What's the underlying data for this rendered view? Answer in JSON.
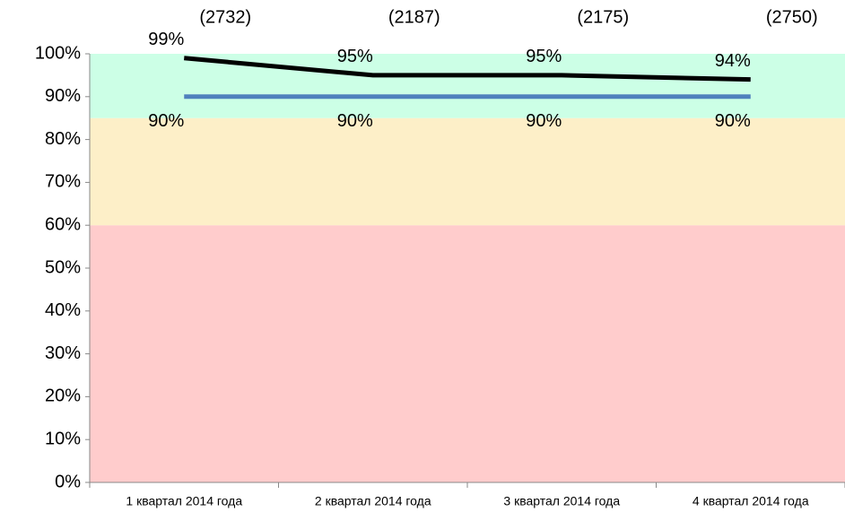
{
  "chart_data": {
    "type": "line",
    "categories": [
      "1 квартал 2014 года",
      "2 квартал 2014 года",
      "3 квартал 2014 года",
      "4 квартал 2014 года"
    ],
    "series": [
      {
        "name": null,
        "color": "#000000",
        "values": [
          99,
          95,
          95,
          94
        ],
        "value_labels": [
          "99%",
          "95%",
          "95%",
          "94%"
        ],
        "annotations": [
          "(2732)",
          "(2187)",
          "(2175)",
          "(2750)"
        ]
      },
      {
        "name": null,
        "color": "#4f81bd",
        "values": [
          90,
          90,
          90,
          90
        ],
        "value_labels": [
          "90%",
          "90%",
          "90%",
          "90%"
        ]
      }
    ],
    "bands": [
      {
        "from": 0,
        "to": 60,
        "color": "#ffcccc"
      },
      {
        "from": 60,
        "to": 85,
        "color": "#fdefc8"
      },
      {
        "from": 85,
        "to": 100,
        "color": "#ccffe6"
      }
    ],
    "ylim": [
      0,
      100
    ],
    "yticks": [
      {
        "value": 0,
        "label": "0%"
      },
      {
        "value": 10,
        "label": "10%"
      },
      {
        "value": 20,
        "label": "20%"
      },
      {
        "value": 30,
        "label": "30%"
      },
      {
        "value": 40,
        "label": "40%"
      },
      {
        "value": 50,
        "label": "50%"
      },
      {
        "value": 60,
        "label": "60%"
      },
      {
        "value": 70,
        "label": "70%"
      },
      {
        "value": 80,
        "label": "80%"
      },
      {
        "value": 90,
        "label": "90%"
      },
      {
        "value": 100,
        "label": "100%"
      }
    ],
    "legend": false
  }
}
